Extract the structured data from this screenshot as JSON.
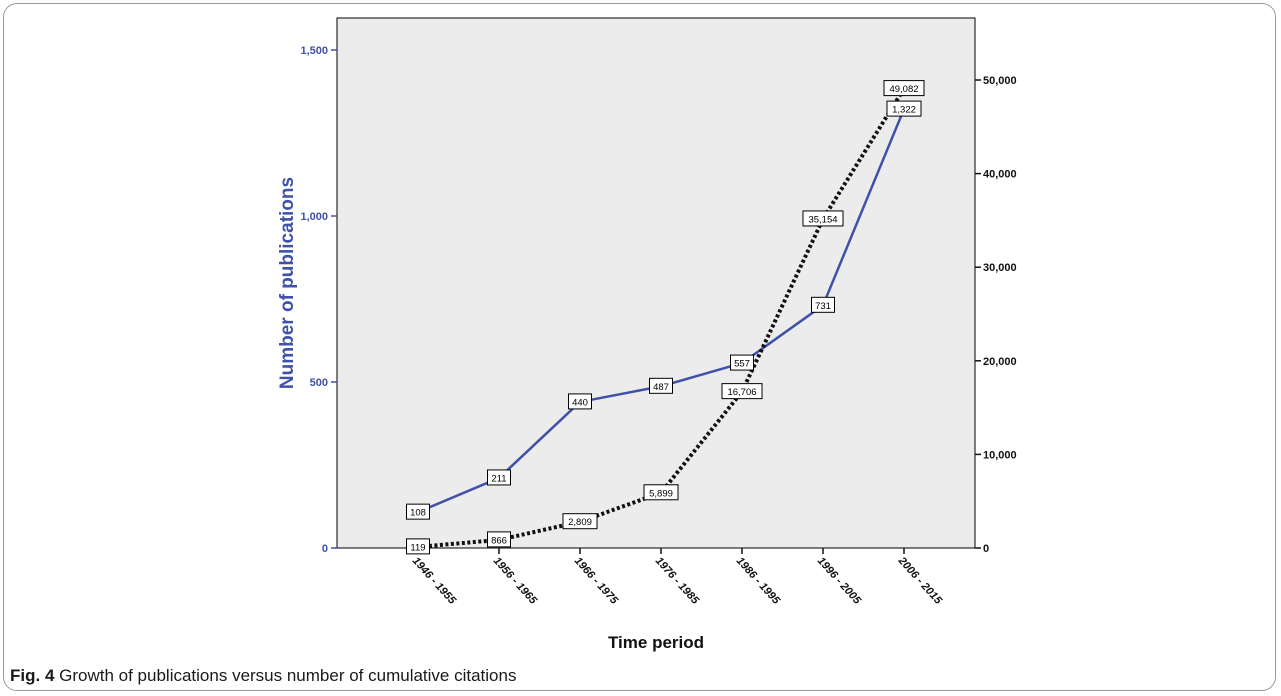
{
  "figure": {
    "caption_label": "Fig. 4",
    "caption_text": "Growth of publications versus number of cumulative citations"
  },
  "chart_data": {
    "type": "line",
    "categories": [
      "1946 - 1955",
      "1956 - 1965",
      "1966 - 1975",
      "1976 - 1985",
      "1986 - 1995",
      "1996 - 2005",
      "2006 - 2015"
    ],
    "xlabel": "Time period",
    "ylabel": "Number of publications",
    "y2label": "",
    "ylim": [
      0,
      1500
    ],
    "y2lim": [
      0,
      50000
    ],
    "yticks": [
      "0",
      "500",
      "1,000",
      "1,500"
    ],
    "y2ticks": [
      "0",
      "10,000",
      "20,000",
      "30,000",
      "40,000",
      "50,000"
    ],
    "grid": false,
    "series": [
      {
        "axis": "left",
        "style": "solid",
        "color": "#3f51a8",
        "values": [
          108,
          211,
          440,
          487,
          557,
          731,
          1322
        ],
        "labels": [
          "108",
          "211",
          "440",
          "487",
          "557",
          "731",
          "1,322"
        ]
      },
      {
        "axis": "right",
        "style": "dotted",
        "color": "#111111",
        "values": [
          119,
          866,
          2809,
          5899,
          16706,
          35154,
          49082
        ],
        "labels": [
          "119",
          "866",
          "2,809",
          "5,899",
          "16,706",
          "35,154",
          "49,082"
        ]
      }
    ]
  }
}
